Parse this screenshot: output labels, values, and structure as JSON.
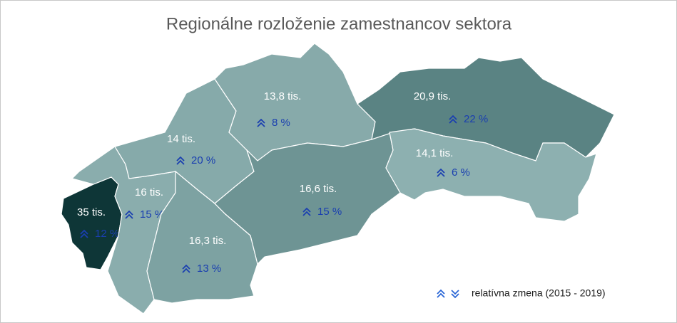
{
  "title": "Regionálne rozloženie zamestnancov sektora",
  "regions": [
    {
      "count": "35 tis.",
      "change": "12 %"
    },
    {
      "count": "16 tis.",
      "change": "15 %"
    },
    {
      "count": "14 tis.",
      "change": "20 %"
    },
    {
      "count": "16,3 tis.",
      "change": "13 %"
    },
    {
      "count": "13,8 tis.",
      "change": "8 %"
    },
    {
      "count": "16,6 tis.",
      "change": "15 %"
    },
    {
      "count": "20,9 tis.",
      "change": "22 %"
    },
    {
      "count": "14,1 tis.",
      "change": "6 %"
    }
  ],
  "legend": "relatívna zmena (2015 - 2019)"
}
